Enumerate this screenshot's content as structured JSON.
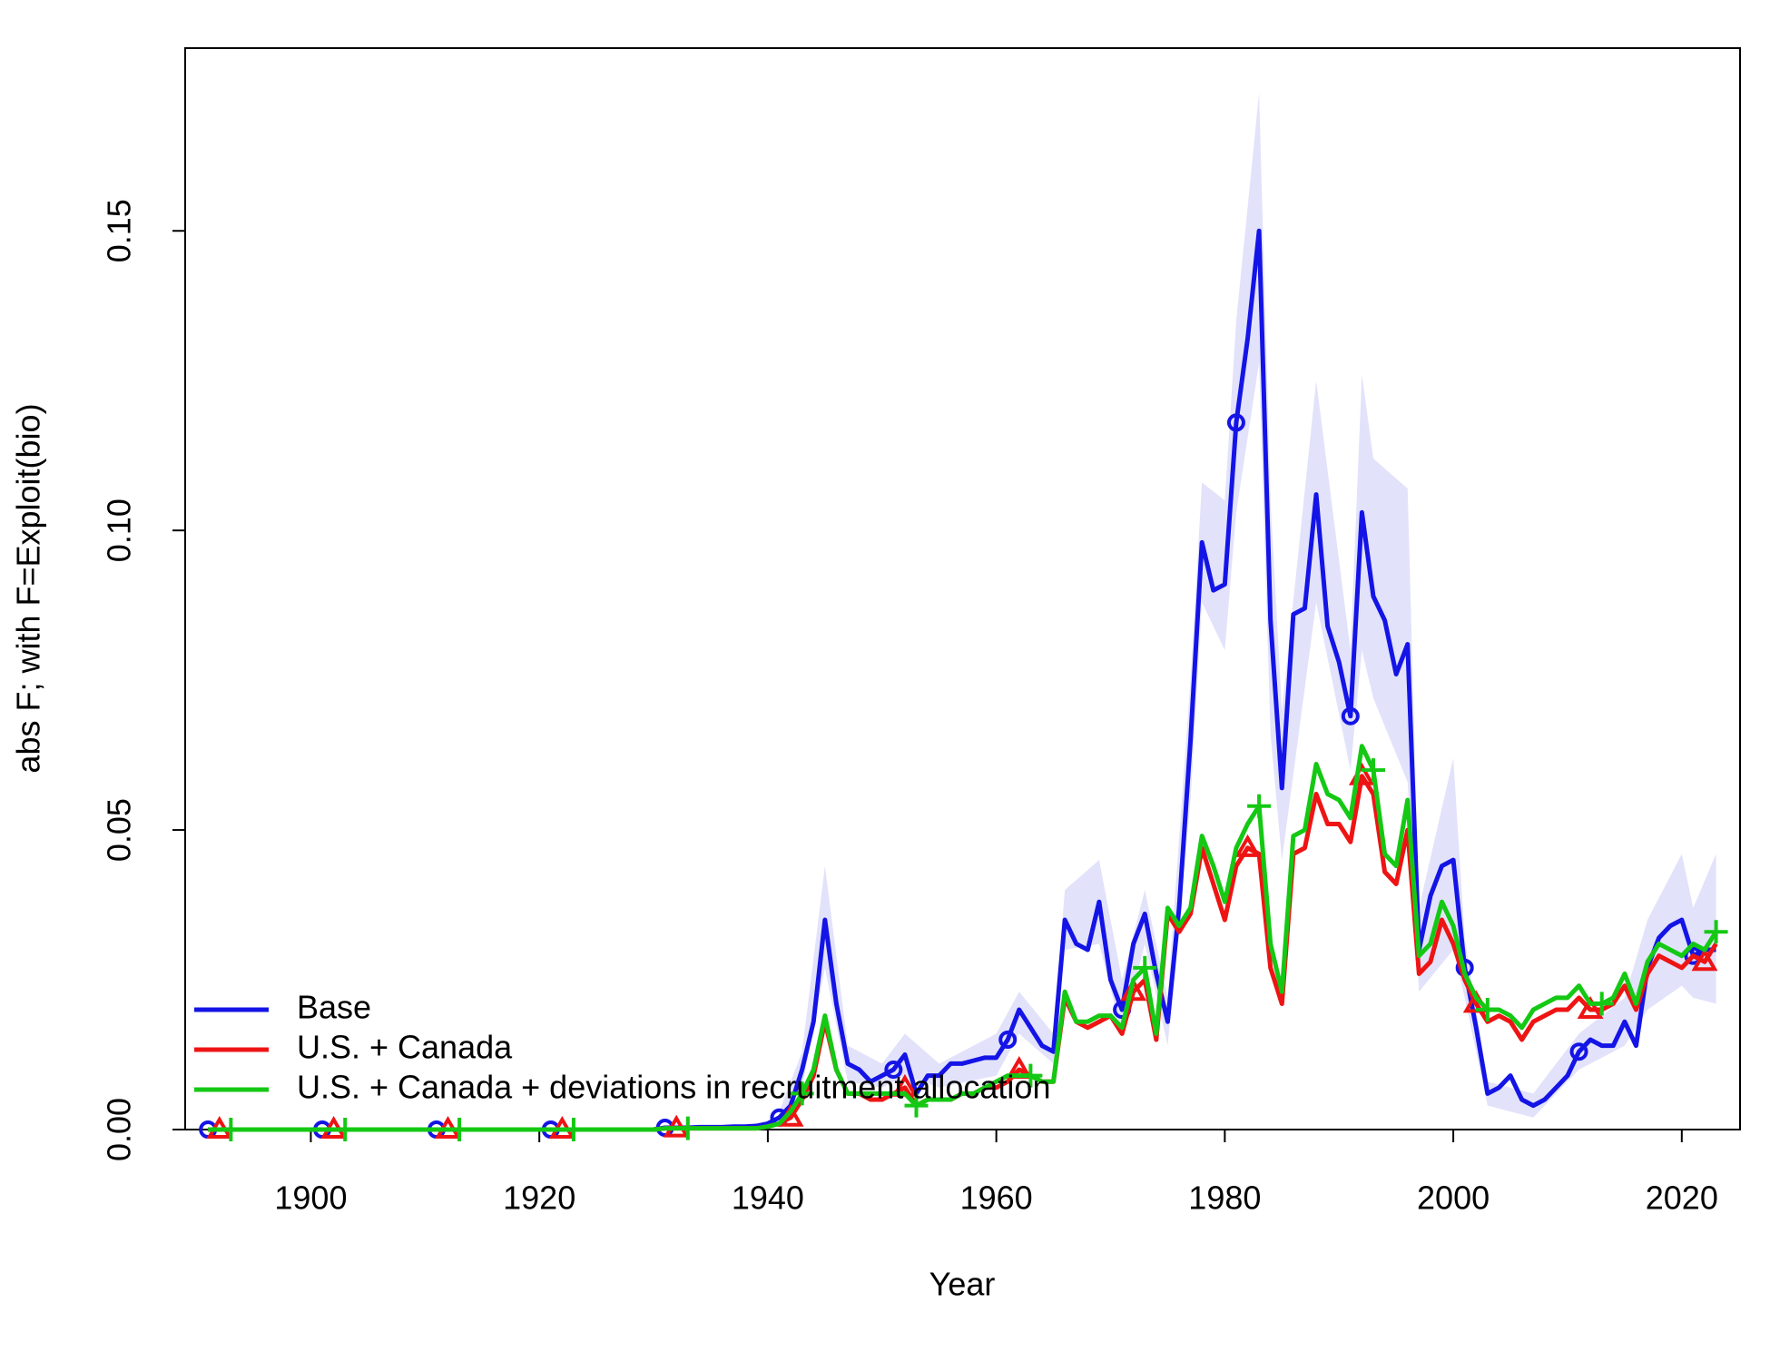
{
  "chart_data": {
    "type": "line",
    "x_label": "Year",
    "y_label": "abs F; with F=Exploit(bio)",
    "xlim": [
      1889,
      2025.1
    ],
    "ylim": [
      0,
      0.1805
    ],
    "xticks": [
      1900,
      1920,
      1940,
      1960,
      1980,
      2000,
      2020
    ],
    "yticks": [
      {
        "value": 0,
        "label": "0.00"
      },
      {
        "value": 0.05,
        "label": "0.05"
      },
      {
        "value": 0.1,
        "label": "0.10"
      },
      {
        "value": 0.15,
        "label": "0.15"
      }
    ],
    "legend": "bottom-left",
    "x": [
      1891,
      1892,
      1893,
      1894,
      1895,
      1896,
      1897,
      1898,
      1899,
      1900,
      1901,
      1902,
      1903,
      1904,
      1905,
      1906,
      1907,
      1908,
      1909,
      1910,
      1911,
      1912,
      1913,
      1914,
      1915,
      1916,
      1917,
      1918,
      1919,
      1920,
      1921,
      1922,
      1923,
      1924,
      1925,
      1926,
      1927,
      1928,
      1929,
      1930,
      1931,
      1932,
      1933,
      1934,
      1935,
      1936,
      1937,
      1938,
      1939,
      1940,
      1941,
      1942,
      1943,
      1944,
      1945,
      1946,
      1947,
      1948,
      1949,
      1950,
      1951,
      1952,
      1953,
      1954,
      1955,
      1956,
      1957,
      1958,
      1959,
      1960,
      1961,
      1962,
      1963,
      1964,
      1965,
      1966,
      1967,
      1968,
      1969,
      1970,
      1971,
      1972,
      1973,
      1974,
      1975,
      1976,
      1977,
      1978,
      1979,
      1980,
      1981,
      1982,
      1983,
      1984,
      1985,
      1986,
      1987,
      1988,
      1989,
      1990,
      1991,
      1992,
      1993,
      1994,
      1995,
      1996,
      1997,
      1998,
      1999,
      2000,
      2001,
      2002,
      2003,
      2004,
      2005,
      2006,
      2007,
      2008,
      2009,
      2010,
      2011,
      2012,
      2013,
      2014,
      2015,
      2016,
      2017,
      2018,
      2019,
      2020,
      2021,
      2022,
      2023
    ],
    "band": {
      "color": "#e2e2fb",
      "x": [
        1941,
        1943,
        1945,
        1947,
        1950,
        1952,
        1955,
        1960,
        1962,
        1965,
        1966,
        1969,
        1971,
        1973,
        1975,
        1977,
        1978,
        1980,
        1981,
        1983,
        1984,
        1985,
        1988,
        1991,
        1992,
        1993,
        1996,
        1997,
        2000,
        2001,
        2003,
        2007,
        2011,
        2015,
        2017,
        2020,
        2021,
        2023
      ],
      "upper": [
        0.003,
        0.013,
        0.044,
        0.014,
        0.011,
        0.016,
        0.011,
        0.016,
        0.023,
        0.016,
        0.04,
        0.045,
        0.025,
        0.04,
        0.022,
        0.075,
        0.108,
        0.105,
        0.135,
        0.173,
        0.105,
        0.07,
        0.125,
        0.08,
        0.126,
        0.112,
        0.107,
        0.037,
        0.062,
        0.032,
        0.008,
        0.006,
        0.016,
        0.022,
        0.035,
        0.046,
        0.037,
        0.046
      ],
      "lower": [
        0.001,
        0.007,
        0.027,
        0.008,
        0.007,
        0.009,
        0.007,
        0.009,
        0.016,
        0.011,
        0.03,
        0.031,
        0.016,
        0.031,
        0.014,
        0.055,
        0.088,
        0.08,
        0.103,
        0.128,
        0.066,
        0.045,
        0.088,
        0.06,
        0.08,
        0.072,
        0.058,
        0.023,
        0.03,
        0.022,
        0.004,
        0.002,
        0.01,
        0.014,
        0.02,
        0.024,
        0.022,
        0.021
      ]
    },
    "series": [
      {
        "name": "Base",
        "color": "#1414e6",
        "marker": "circle",
        "values": [
          0,
          0,
          0,
          0,
          0,
          0,
          0,
          0,
          0,
          0,
          0,
          0,
          0,
          0,
          0,
          0,
          0,
          0,
          0,
          0,
          0,
          0,
          0,
          0,
          0,
          0,
          0,
          0,
          0,
          0,
          0,
          0,
          0,
          0,
          0,
          0,
          0,
          0,
          0,
          0,
          0.0003,
          0.0003,
          0.0003,
          0.0004,
          0.0004,
          0.0004,
          0.0005,
          0.0005,
          0.0006,
          0.001,
          0.002,
          0.004,
          0.01,
          0.018,
          0.035,
          0.021,
          0.011,
          0.01,
          0.008,
          0.009,
          0.01,
          0.0125,
          0.006,
          0.009,
          0.009,
          0.011,
          0.011,
          0.0115,
          0.012,
          0.012,
          0.015,
          0.02,
          0.017,
          0.014,
          0.013,
          0.035,
          0.031,
          0.03,
          0.038,
          0.025,
          0.02,
          0.031,
          0.036,
          0.026,
          0.018,
          0.037,
          0.065,
          0.098,
          0.09,
          0.091,
          0.118,
          0.132,
          0.15,
          0.085,
          0.057,
          0.086,
          0.087,
          0.106,
          0.084,
          0.078,
          0.069,
          0.103,
          0.089,
          0.085,
          0.076,
          0.081,
          0.03,
          0.039,
          0.044,
          0.045,
          0.027,
          0.017,
          0.006,
          0.007,
          0.009,
          0.005,
          0.004,
          0.005,
          0.007,
          0.009,
          0.013,
          0.015,
          0.014,
          0.014,
          0.018,
          0.014,
          0.027,
          0.032,
          0.034,
          0.035,
          0.029,
          0.03,
          0.03
        ]
      },
      {
        "name": "U.S. + Canada",
        "color": "#ee1414",
        "marker": "triangle",
        "values": [
          0,
          0,
          0,
          0,
          0,
          0,
          0,
          0,
          0,
          0,
          0,
          0,
          0,
          0,
          0,
          0,
          0,
          0,
          0,
          0,
          0,
          0,
          0,
          0,
          0,
          0,
          0,
          0,
          0,
          0,
          0,
          0,
          0,
          0,
          0,
          0,
          0,
          0,
          0,
          0,
          0.0002,
          0.0002,
          0.0002,
          0.0002,
          0.0002,
          0.0002,
          0.0002,
          0.0002,
          0.0002,
          0.0005,
          0.001,
          0.002,
          0.005,
          0.009,
          0.018,
          0.01,
          0.006,
          0.006,
          0.005,
          0.005,
          0.006,
          0.007,
          0.004,
          0.005,
          0.005,
          0.005,
          0.006,
          0.006,
          0.007,
          0.007,
          0.008,
          0.01,
          0.009,
          0.008,
          0.008,
          0.022,
          0.018,
          0.017,
          0.018,
          0.019,
          0.016,
          0.023,
          0.025,
          0.015,
          0.036,
          0.033,
          0.036,
          0.047,
          0.041,
          0.035,
          0.044,
          0.047,
          0.046,
          0.027,
          0.021,
          0.046,
          0.047,
          0.056,
          0.051,
          0.051,
          0.048,
          0.059,
          0.056,
          0.043,
          0.041,
          0.05,
          0.026,
          0.028,
          0.035,
          0.031,
          0.025,
          0.021,
          0.018,
          0.019,
          0.018,
          0.015,
          0.018,
          0.019,
          0.02,
          0.02,
          0.022,
          0.02,
          0.02,
          0.021,
          0.024,
          0.02,
          0.026,
          0.029,
          0.028,
          0.027,
          0.029,
          0.028,
          0.031
        ]
      },
      {
        "name": "U.S. + Canada + deviations in recruitment allocation",
        "color": "#14c814",
        "marker": "plus",
        "values": [
          0,
          0,
          0,
          0,
          0,
          0,
          0,
          0,
          0,
          0,
          0,
          0,
          0,
          0,
          0,
          0,
          0,
          0,
          0,
          0,
          0,
          0,
          0,
          0,
          0,
          0,
          0,
          0,
          0,
          0,
          0,
          0,
          0,
          0,
          0,
          0,
          0,
          0,
          0,
          0,
          0.0002,
          0.0002,
          0.0002,
          0.0002,
          0.0002,
          0.0002,
          0.0002,
          0.0002,
          0.0002,
          0.0005,
          0.001,
          0.003,
          0.006,
          0.01,
          0.019,
          0.01,
          0.006,
          0.006,
          0.006,
          0.006,
          0.006,
          0.006,
          0.004,
          0.005,
          0.005,
          0.005,
          0.006,
          0.006,
          0.007,
          0.008,
          0.009,
          0.009,
          0.009,
          0.008,
          0.008,
          0.023,
          0.018,
          0.018,
          0.019,
          0.019,
          0.017,
          0.025,
          0.027,
          0.016,
          0.037,
          0.034,
          0.037,
          0.049,
          0.044,
          0.038,
          0.047,
          0.051,
          0.054,
          0.031,
          0.023,
          0.049,
          0.05,
          0.061,
          0.056,
          0.055,
          0.052,
          0.064,
          0.06,
          0.046,
          0.044,
          0.055,
          0.029,
          0.031,
          0.038,
          0.034,
          0.026,
          0.022,
          0.02,
          0.02,
          0.019,
          0.017,
          0.02,
          0.021,
          0.022,
          0.022,
          0.024,
          0.021,
          0.021,
          0.022,
          0.026,
          0.021,
          0.028,
          0.031,
          0.03,
          0.029,
          0.031,
          0.03,
          0.033
        ]
      }
    ]
  }
}
